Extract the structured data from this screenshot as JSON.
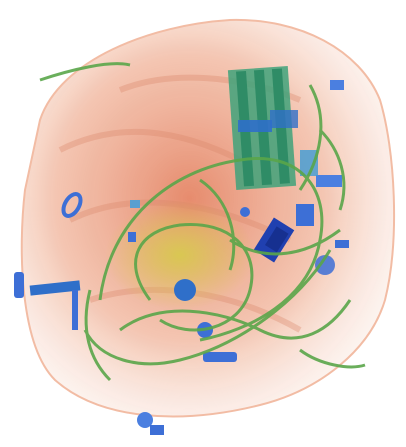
{
  "scan": {
    "background": "#ffffff",
    "organic_color": "#e8815c",
    "mixed_color": "#c9c35a",
    "inorganic_color": "#3d9bd6",
    "dense_color": "#1f3fa8",
    "wire_color": "#5aa64a"
  }
}
